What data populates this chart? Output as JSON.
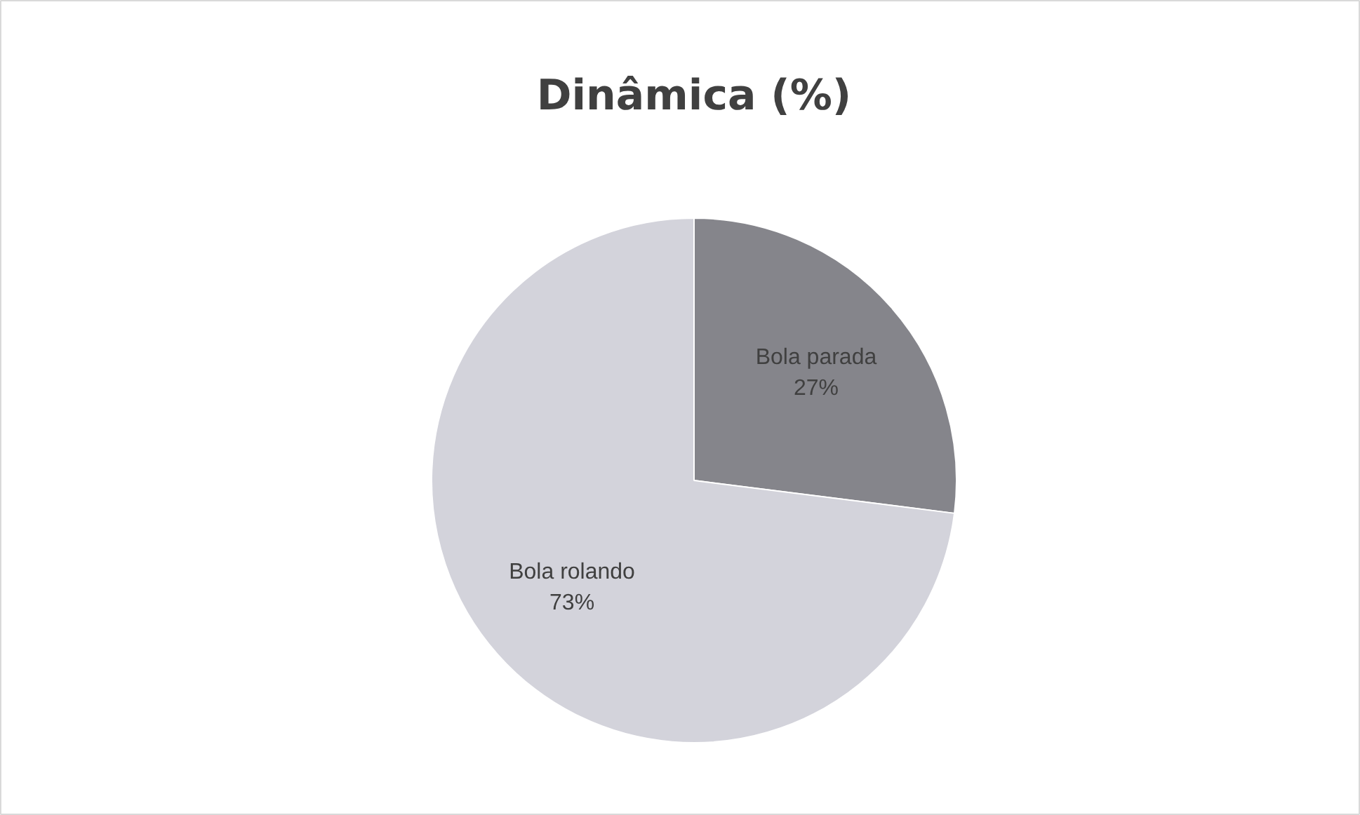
{
  "chart_data": {
    "type": "pie",
    "title": "Dinâmica (%)",
    "categories": [
      "Bola parada",
      "Bola rolando"
    ],
    "values": [
      27,
      73
    ],
    "value_labels": [
      "27%",
      "73%"
    ],
    "colors": [
      "#85858b",
      "#d3d3db"
    ]
  }
}
